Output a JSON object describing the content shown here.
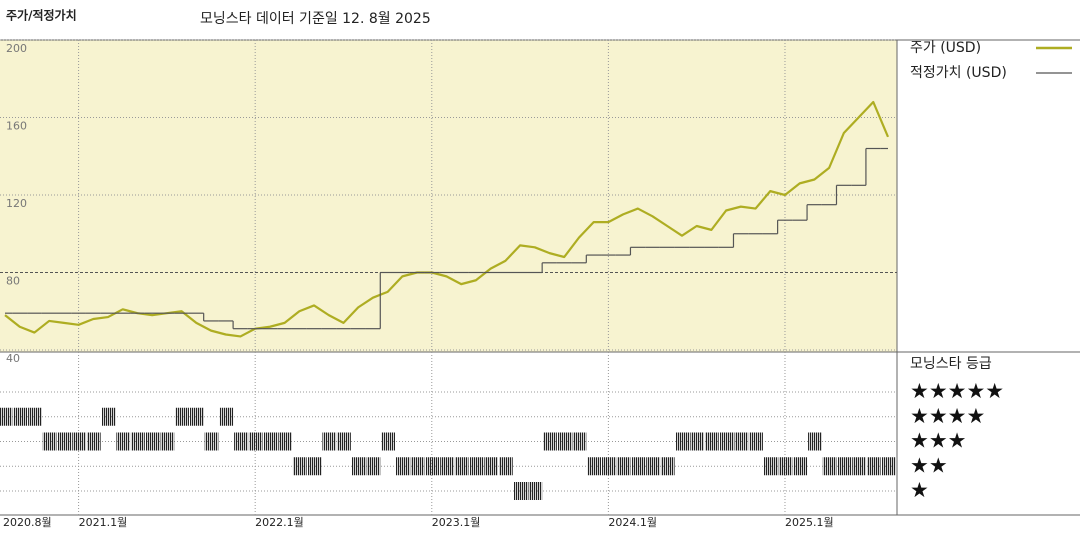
{
  "chart_data": [
    {
      "type": "line",
      "title": "주가/적정가치",
      "subtitle": "모닝스타 데이터 기준일 12. 8월 2025",
      "x": [
        "2020-08",
        "2020-09",
        "2020-10",
        "2020-11",
        "2020-12",
        "2021-01",
        "2021-02",
        "2021-03",
        "2021-04",
        "2021-05",
        "2021-06",
        "2021-07",
        "2021-08",
        "2021-09",
        "2021-10",
        "2021-11",
        "2021-12",
        "2022-01",
        "2022-02",
        "2022-03",
        "2022-04",
        "2022-05",
        "2022-06",
        "2022-07",
        "2022-08",
        "2022-09",
        "2022-10",
        "2022-11",
        "2022-12",
        "2023-01",
        "2023-02",
        "2023-03",
        "2023-04",
        "2023-05",
        "2023-06",
        "2023-07",
        "2023-08",
        "2023-09",
        "2023-10",
        "2023-11",
        "2023-12",
        "2024-01",
        "2024-02",
        "2024-03",
        "2024-04",
        "2024-05",
        "2024-06",
        "2024-07",
        "2024-08",
        "2024-09",
        "2024-10",
        "2024-11",
        "2024-12",
        "2025-01",
        "2025-02",
        "2025-03",
        "2025-04",
        "2025-05",
        "2025-06",
        "2025-07",
        "2025-08"
      ],
      "xticks": [
        {
          "value": "2020-08",
          "label": "2020.8월"
        },
        {
          "value": "2021-01",
          "label": "2021.1월"
        },
        {
          "value": "2022-01",
          "label": "2022.1월"
        },
        {
          "value": "2023-01",
          "label": "2023.1월"
        },
        {
          "value": "2024-01",
          "label": "2024.1월"
        },
        {
          "value": "2025-01",
          "label": "2025.1월"
        }
      ],
      "ylim": [
        40,
        200
      ],
      "yticks": [
        40,
        80,
        120,
        160,
        200
      ],
      "grid": true,
      "series": [
        {
          "name": "주가 (USD)",
          "color": "#aead22",
          "style": "line",
          "values": [
            58,
            52,
            49,
            55,
            54,
            53,
            56,
            57,
            61,
            59,
            58,
            59,
            60,
            54,
            50,
            48,
            47,
            51,
            52,
            54,
            60,
            63,
            58,
            54,
            62,
            67,
            70,
            78,
            80,
            80,
            78,
            74,
            76,
            82,
            86,
            94,
            93,
            90,
            88,
            98,
            106,
            106,
            110,
            113,
            109,
            104,
            99,
            104,
            102,
            112,
            114,
            113,
            122,
            120,
            126,
            128,
            134,
            152,
            160,
            168,
            150
          ]
        },
        {
          "name": "적정가치 (USD)",
          "color": "#555555",
          "style": "step",
          "values": [
            59,
            59,
            59,
            59,
            59,
            59,
            59,
            59,
            59,
            59,
            59,
            59,
            59,
            59,
            55,
            55,
            51,
            51,
            51,
            51,
            51,
            51,
            51,
            51,
            51,
            51,
            80,
            80,
            80,
            80,
            80,
            80,
            80,
            80,
            80,
            80,
            80,
            85,
            85,
            85,
            89,
            89,
            89,
            93,
            93,
            93,
            93,
            93,
            93,
            93,
            100,
            100,
            100,
            107,
            107,
            115,
            115,
            125,
            125,
            144,
            144
          ]
        }
      ]
    },
    {
      "type": "rating-strip",
      "title": "모닝스타 등급",
      "levels": [
        {
          "value": 5,
          "label": "★★★★★"
        },
        {
          "value": 4,
          "label": "★★★★"
        },
        {
          "value": 3,
          "label": "★★★"
        },
        {
          "value": 2,
          "label": "★★"
        },
        {
          "value": 1,
          "label": "★"
        }
      ],
      "values": [
        4,
        4,
        4,
        3,
        3,
        3,
        3,
        4,
        3,
        3,
        3,
        3,
        4,
        4,
        3,
        4,
        3,
        3,
        3,
        3,
        2,
        2,
        3,
        3,
        2,
        2,
        3,
        2,
        2,
        2,
        2,
        2,
        2,
        2,
        2,
        1,
        1,
        3,
        3,
        3,
        2,
        2,
        2,
        2,
        2,
        2,
        3,
        3,
        3,
        3,
        3,
        3,
        2,
        2,
        2,
        3,
        2,
        2,
        2,
        2,
        2
      ]
    }
  ]
}
